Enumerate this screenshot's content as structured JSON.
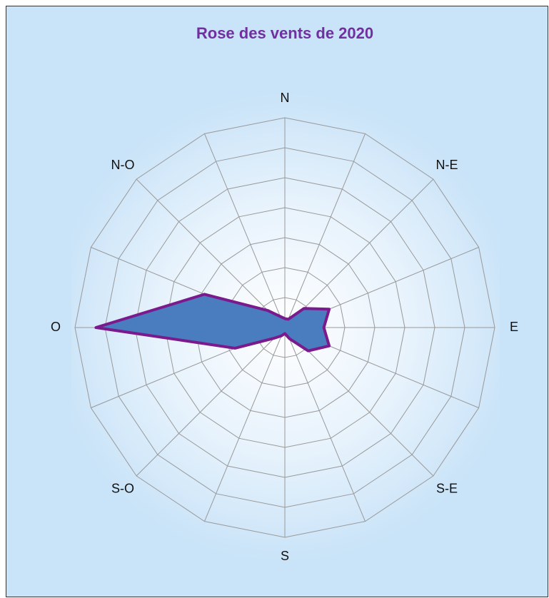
{
  "chart_data": {
    "type": "radar",
    "title": "Rose des vents de 2020",
    "categories": [
      "N",
      null,
      "N-E",
      null,
      "E",
      null,
      "S-E",
      null,
      "S",
      null,
      "S-O",
      null,
      "O",
      null,
      "N-O",
      null
    ],
    "values": [
      0.3,
      0.3,
      0.9,
      1.6,
      1.3,
      1.6,
      1.1,
      0.4,
      0.2,
      0.3,
      0.5,
      1.8,
      6.3,
      2.9,
      0.8,
      0.4
    ],
    "color": "#4a7cc0",
    "line_color": "#7a1a8c",
    "ylim": [
      0,
      7
    ],
    "yticks": [
      1,
      2,
      3,
      4,
      5,
      6,
      7
    ],
    "grid": true
  }
}
